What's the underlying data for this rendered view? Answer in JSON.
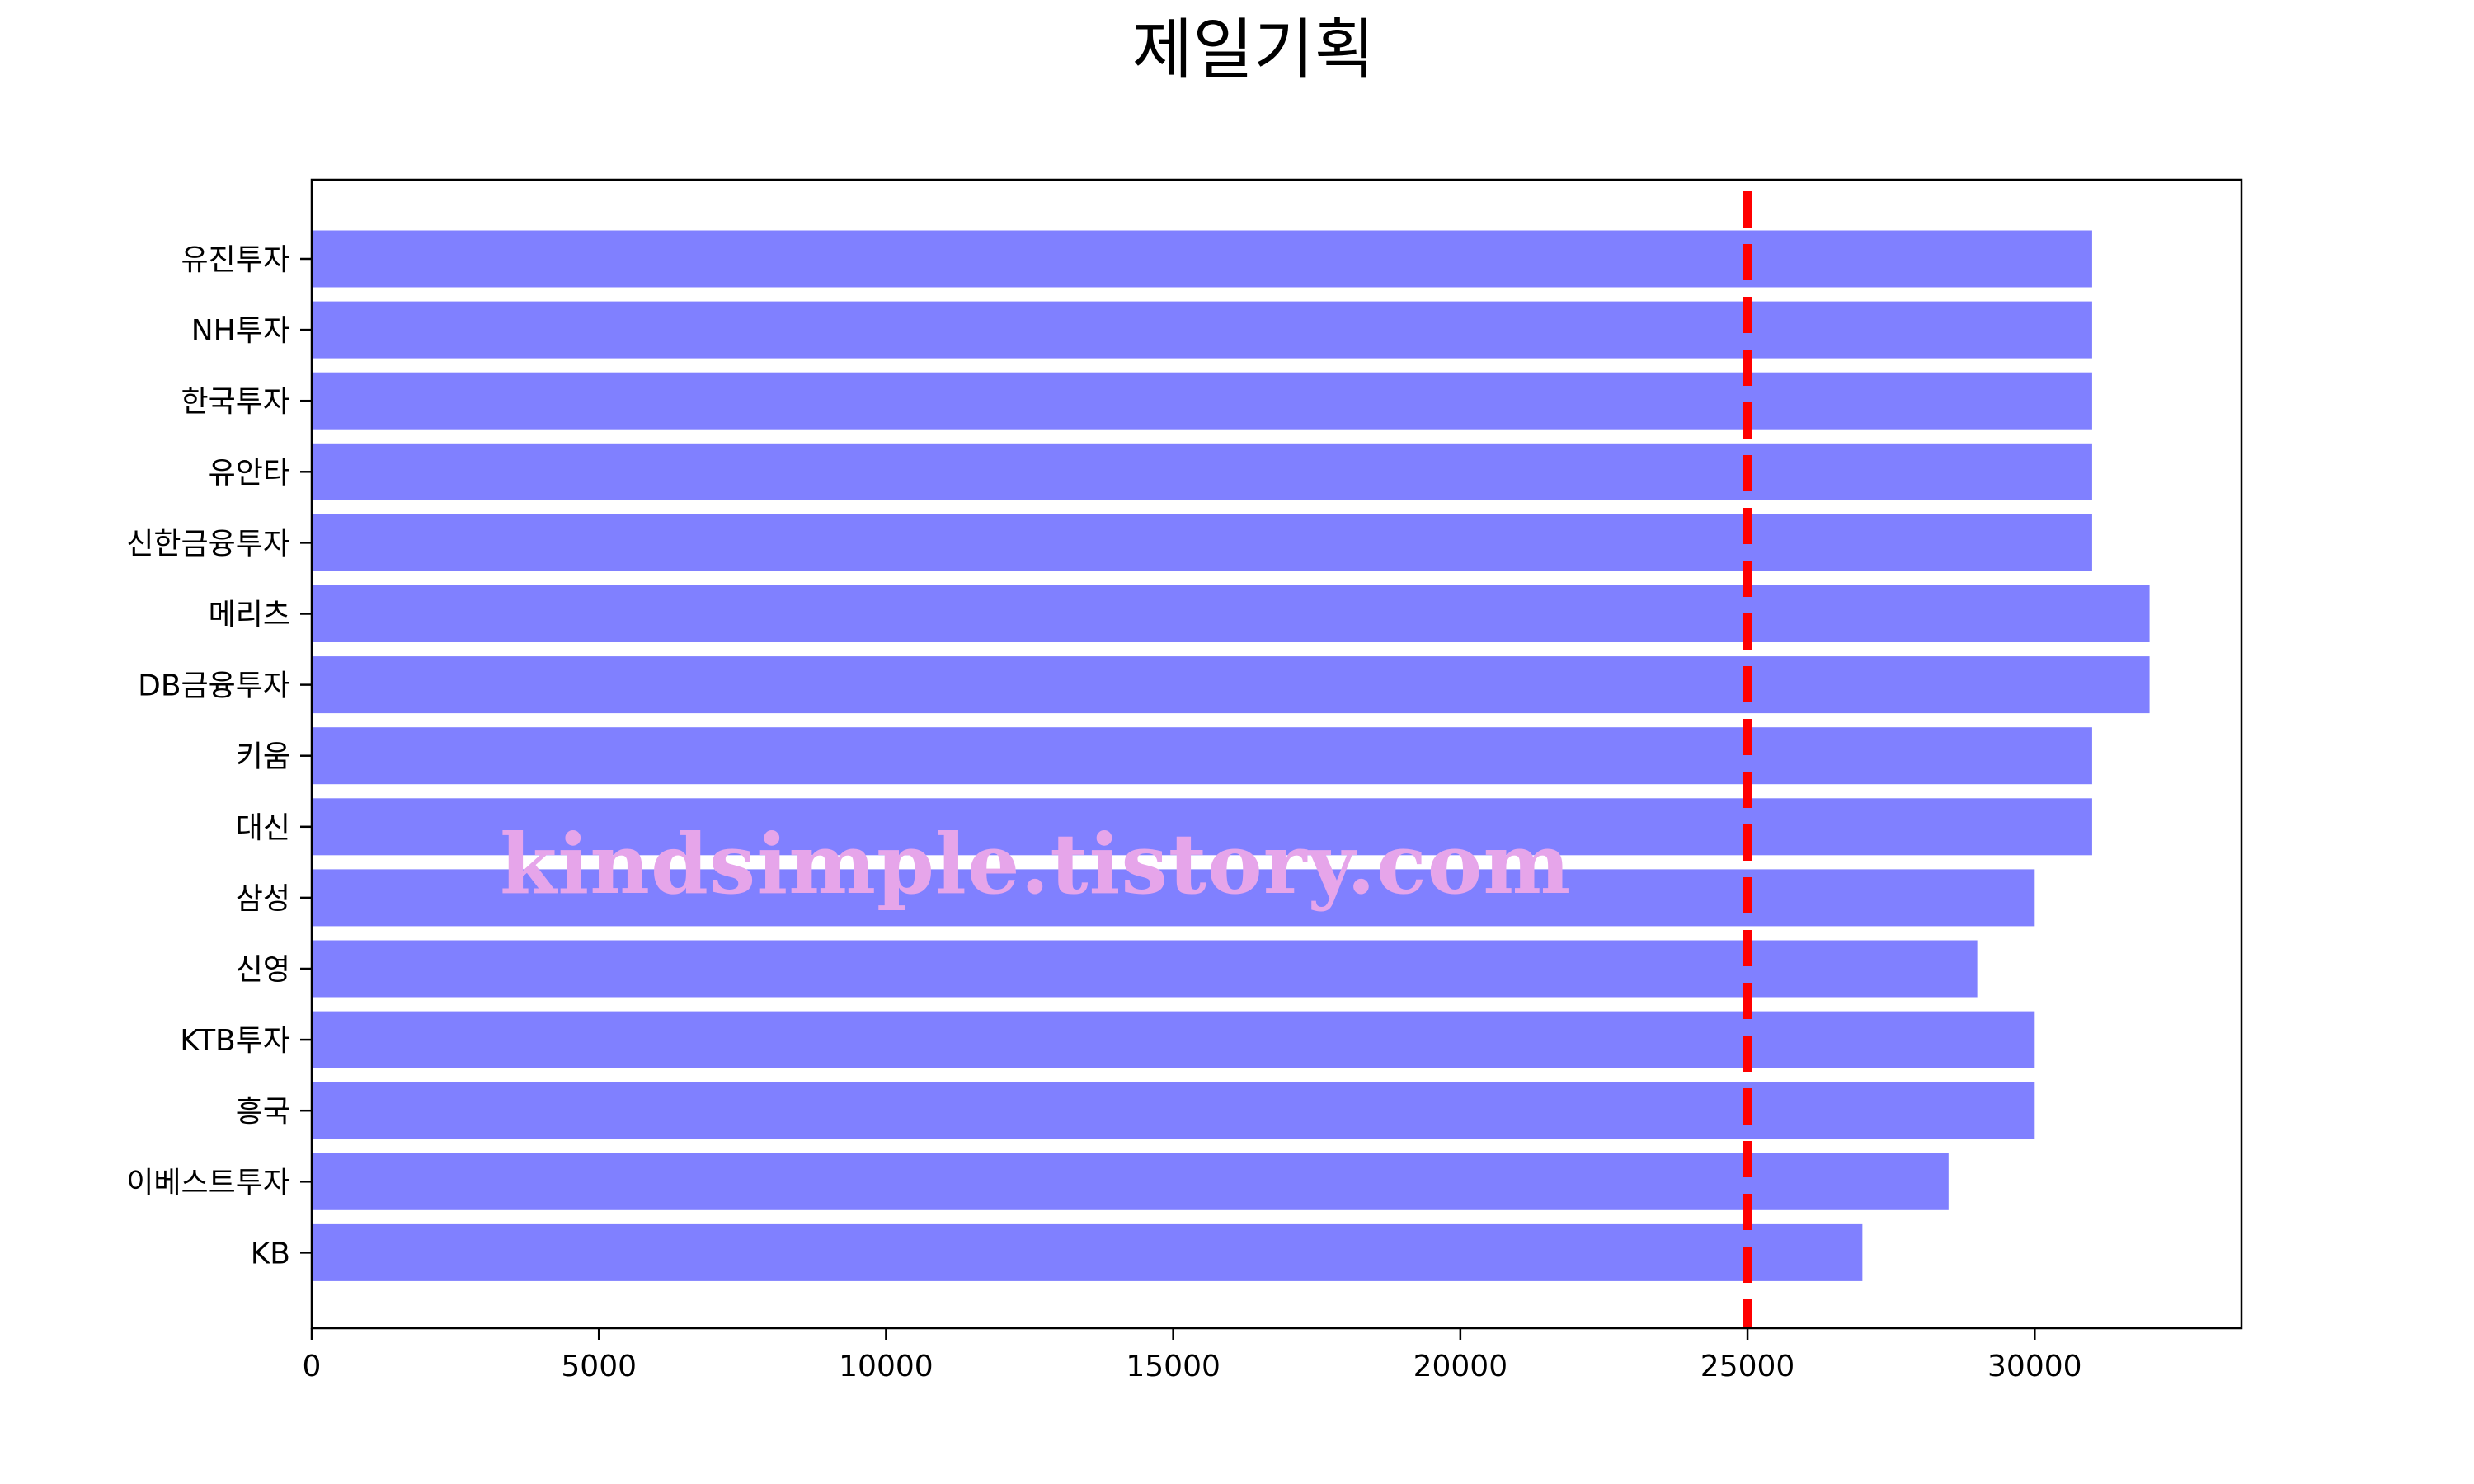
{
  "chart_data": {
    "type": "bar",
    "orientation": "horizontal",
    "title": "제일기획",
    "xlabel": "",
    "ylabel": "",
    "categories": [
      "유진투자",
      "NH투자",
      "한국투자",
      "유안타",
      "신한금융투자",
      "메리츠",
      "DB금융투자",
      "키움",
      "대신",
      "삼성",
      "신영",
      "KTB투자",
      "흥국",
      "이베스트투자",
      "KB"
    ],
    "values": [
      31000,
      31000,
      31000,
      31000,
      31000,
      32000,
      32000,
      31000,
      31000,
      30000,
      29000,
      30000,
      30000,
      28500,
      27000
    ],
    "xlim": [
      0,
      33600
    ],
    "xticks": [
      "0",
      "5000",
      "10000",
      "15000",
      "20000",
      "25000",
      "30000"
    ],
    "reference_line": {
      "value": 25000,
      "style": "dashed",
      "color": "#ff0000"
    },
    "bar_color": "#8080ff",
    "grid": false,
    "legend": "none"
  },
  "watermark": {
    "text": "kindsimple.tistory.com",
    "color": "#e6a5ea"
  }
}
